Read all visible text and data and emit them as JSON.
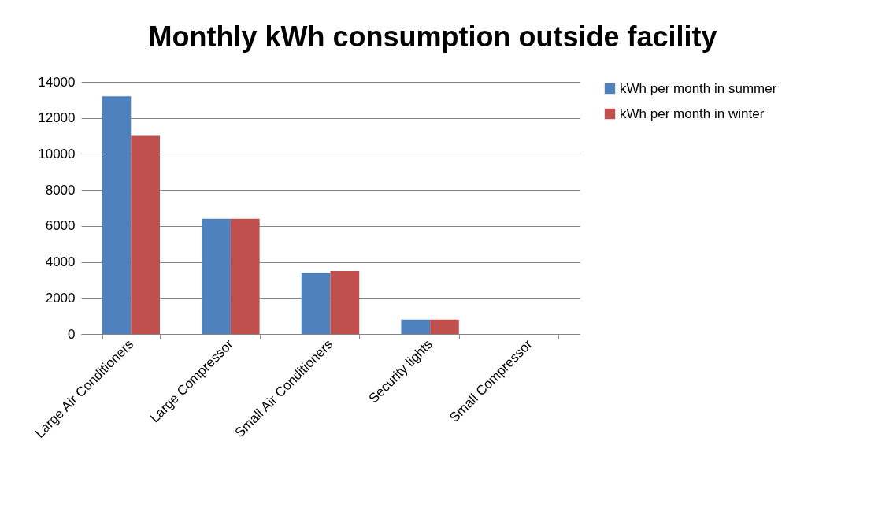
{
  "chart_data": {
    "type": "bar",
    "title": "Monthly kWh consumption outside facility",
    "categories": [
      "Large Air Conditioners",
      "Large Compressor",
      "Small Air Conditioners",
      "Security lights",
      "Small Compressor"
    ],
    "series": [
      {
        "name": "kWh per month in summer",
        "color": "#4f81bd",
        "values": [
          13200,
          6400,
          3400,
          800,
          0
        ]
      },
      {
        "name": "kWh per month in winter",
        "color": "#c0504d",
        "values": [
          11000,
          6400,
          3500,
          800,
          0
        ]
      }
    ],
    "ylim": [
      0,
      14000
    ],
    "yticks": [
      0,
      2000,
      4000,
      6000,
      8000,
      10000,
      12000,
      14000
    ],
    "grid": "y",
    "legend": "right"
  }
}
